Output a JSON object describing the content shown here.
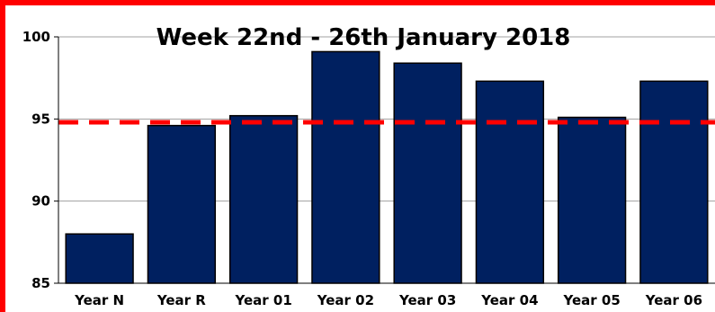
{
  "chart_data": {
    "type": "bar",
    "title": "Week 22nd - 26th January 2018",
    "categories": [
      "Year N",
      "Year R",
      "Year 01",
      "Year 02",
      "Year 03",
      "Year 04",
      "Year 05",
      "Year 06"
    ],
    "values": [
      88.0,
      94.6,
      95.2,
      99.1,
      98.4,
      97.3,
      95.1,
      97.3
    ],
    "ylim": [
      85,
      100
    ],
    "yticks": [
      85,
      90,
      95,
      100
    ],
    "reference_line": 94.8,
    "grid": true,
    "legend": "none",
    "colors": {
      "bar": "#002060",
      "reference_line": "#ff0000",
      "frame": "#ff0000",
      "grid": "#a0a0a0"
    }
  }
}
